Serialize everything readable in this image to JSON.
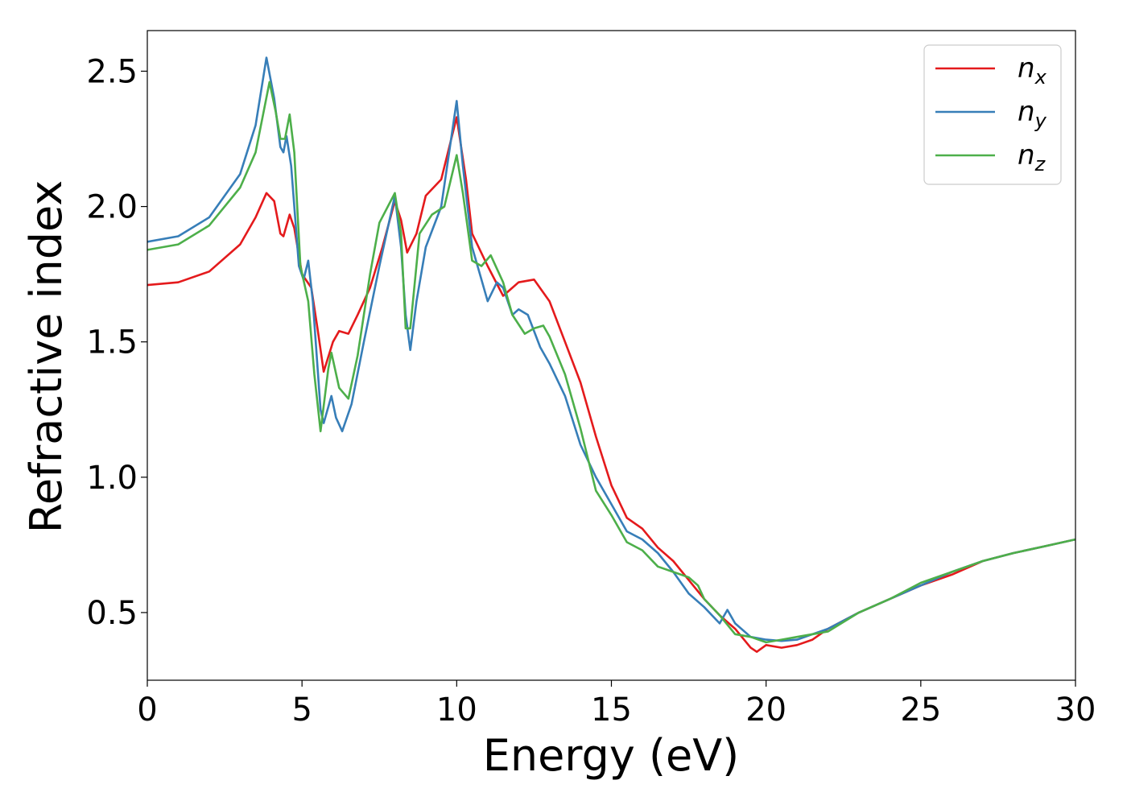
{
  "chart_data": {
    "type": "line",
    "xlabel": "Energy (eV)",
    "ylabel": "Refractive index",
    "xlim": [
      0,
      30
    ],
    "ylim": [
      0.25,
      2.65
    ],
    "xticks": [
      0,
      5,
      10,
      15,
      20,
      25,
      30
    ],
    "xtick_labels": [
      "0",
      "5",
      "10",
      "15",
      "20",
      "25",
      "30"
    ],
    "yticks": [
      0.5,
      1.0,
      1.5,
      2.0,
      2.5
    ],
    "ytick_labels": [
      "0.5",
      "1.0",
      "1.5",
      "2.0",
      "2.5"
    ],
    "grid": false,
    "legend_position": "top-right",
    "series": [
      {
        "name": "n_x",
        "label_main": "n",
        "label_sub": "x",
        "color": "#e41a1c",
        "points": [
          [
            0,
            1.71
          ],
          [
            1,
            1.72
          ],
          [
            2,
            1.76
          ],
          [
            3,
            1.86
          ],
          [
            3.5,
            1.96
          ],
          [
            3.85,
            2.05
          ],
          [
            4.1,
            2.02
          ],
          [
            4.3,
            1.9
          ],
          [
            4.4,
            1.89
          ],
          [
            4.6,
            1.97
          ],
          [
            4.75,
            1.92
          ],
          [
            5.0,
            1.75
          ],
          [
            5.3,
            1.7
          ],
          [
            5.5,
            1.55
          ],
          [
            5.7,
            1.39
          ],
          [
            6.0,
            1.5
          ],
          [
            6.2,
            1.54
          ],
          [
            6.5,
            1.53
          ],
          [
            6.8,
            1.6
          ],
          [
            7.2,
            1.7
          ],
          [
            7.6,
            1.85
          ],
          [
            8.0,
            2.02
          ],
          [
            8.2,
            1.95
          ],
          [
            8.4,
            1.83
          ],
          [
            8.7,
            1.9
          ],
          [
            9.0,
            2.04
          ],
          [
            9.5,
            2.1
          ],
          [
            10.0,
            2.33
          ],
          [
            10.3,
            2.1
          ],
          [
            10.5,
            1.9
          ],
          [
            11.0,
            1.78
          ],
          [
            11.5,
            1.67
          ],
          [
            12.0,
            1.72
          ],
          [
            12.5,
            1.73
          ],
          [
            13.0,
            1.65
          ],
          [
            13.5,
            1.5
          ],
          [
            14.0,
            1.35
          ],
          [
            14.5,
            1.15
          ],
          [
            15.0,
            0.97
          ],
          [
            15.5,
            0.85
          ],
          [
            16.0,
            0.81
          ],
          [
            16.5,
            0.74
          ],
          [
            17.0,
            0.69
          ],
          [
            17.5,
            0.62
          ],
          [
            18.0,
            0.55
          ],
          [
            18.5,
            0.49
          ],
          [
            19.0,
            0.44
          ],
          [
            19.5,
            0.37
          ],
          [
            19.7,
            0.355
          ],
          [
            20.0,
            0.38
          ],
          [
            20.5,
            0.37
          ],
          [
            21.0,
            0.38
          ],
          [
            21.5,
            0.4
          ],
          [
            22,
            0.44
          ],
          [
            23,
            0.5
          ],
          [
            24,
            0.55
          ],
          [
            25,
            0.6
          ],
          [
            26,
            0.64
          ],
          [
            27,
            0.69
          ],
          [
            28,
            0.72
          ],
          [
            29,
            0.745
          ],
          [
            30,
            0.77
          ]
        ]
      },
      {
        "name": "n_y",
        "label_main": "n",
        "label_sub": "y",
        "color": "#377eb8",
        "points": [
          [
            0,
            1.87
          ],
          [
            1,
            1.89
          ],
          [
            2,
            1.96
          ],
          [
            3,
            2.12
          ],
          [
            3.5,
            2.3
          ],
          [
            3.85,
            2.55
          ],
          [
            4.1,
            2.4
          ],
          [
            4.3,
            2.22
          ],
          [
            4.4,
            2.2
          ],
          [
            4.5,
            2.26
          ],
          [
            4.65,
            2.15
          ],
          [
            4.9,
            1.78
          ],
          [
            5.05,
            1.73
          ],
          [
            5.2,
            1.8
          ],
          [
            5.35,
            1.65
          ],
          [
            5.6,
            1.25
          ],
          [
            5.7,
            1.2
          ],
          [
            5.95,
            1.3
          ],
          [
            6.1,
            1.22
          ],
          [
            6.3,
            1.17
          ],
          [
            6.6,
            1.27
          ],
          [
            7.0,
            1.5
          ],
          [
            7.5,
            1.78
          ],
          [
            8.0,
            2.04
          ],
          [
            8.2,
            1.85
          ],
          [
            8.35,
            1.6
          ],
          [
            8.5,
            1.47
          ],
          [
            8.7,
            1.65
          ],
          [
            9.0,
            1.85
          ],
          [
            9.5,
            2.0
          ],
          [
            10.0,
            2.39
          ],
          [
            10.2,
            2.15
          ],
          [
            10.5,
            1.85
          ],
          [
            11.0,
            1.65
          ],
          [
            11.3,
            1.72
          ],
          [
            11.5,
            1.7
          ],
          [
            11.8,
            1.6
          ],
          [
            12.0,
            1.62
          ],
          [
            12.3,
            1.6
          ],
          [
            12.7,
            1.48
          ],
          [
            13.0,
            1.42
          ],
          [
            13.5,
            1.3
          ],
          [
            14.0,
            1.12
          ],
          [
            14.5,
            1.0
          ],
          [
            15.0,
            0.9
          ],
          [
            15.5,
            0.8
          ],
          [
            16.0,
            0.77
          ],
          [
            16.5,
            0.72
          ],
          [
            17.0,
            0.65
          ],
          [
            17.5,
            0.57
          ],
          [
            18.0,
            0.52
          ],
          [
            18.5,
            0.46
          ],
          [
            18.75,
            0.51
          ],
          [
            19.0,
            0.46
          ],
          [
            19.5,
            0.41
          ],
          [
            20.0,
            0.4
          ],
          [
            20.5,
            0.395
          ],
          [
            21,
            0.4
          ],
          [
            22,
            0.44
          ],
          [
            23,
            0.5
          ],
          [
            24,
            0.55
          ],
          [
            25,
            0.6
          ],
          [
            26,
            0.65
          ],
          [
            27,
            0.69
          ],
          [
            28,
            0.72
          ],
          [
            29,
            0.745
          ],
          [
            30,
            0.77
          ]
        ]
      },
      {
        "name": "n_z",
        "label_main": "n",
        "label_sub": "z",
        "color": "#4daf4a",
        "points": [
          [
            0,
            1.84
          ],
          [
            1,
            1.86
          ],
          [
            2,
            1.93
          ],
          [
            3,
            2.07
          ],
          [
            3.5,
            2.2
          ],
          [
            3.95,
            2.46
          ],
          [
            4.15,
            2.35
          ],
          [
            4.3,
            2.25
          ],
          [
            4.45,
            2.25
          ],
          [
            4.6,
            2.34
          ],
          [
            4.75,
            2.2
          ],
          [
            4.95,
            1.78
          ],
          [
            5.2,
            1.65
          ],
          [
            5.4,
            1.38
          ],
          [
            5.6,
            1.17
          ],
          [
            5.85,
            1.4
          ],
          [
            5.95,
            1.46
          ],
          [
            6.2,
            1.33
          ],
          [
            6.5,
            1.29
          ],
          [
            6.8,
            1.45
          ],
          [
            7.2,
            1.75
          ],
          [
            7.5,
            1.94
          ],
          [
            8.0,
            2.05
          ],
          [
            8.2,
            1.9
          ],
          [
            8.35,
            1.55
          ],
          [
            8.5,
            1.55
          ],
          [
            8.8,
            1.9
          ],
          [
            9.2,
            1.97
          ],
          [
            9.6,
            2.0
          ],
          [
            10.0,
            2.19
          ],
          [
            10.2,
            2.05
          ],
          [
            10.5,
            1.8
          ],
          [
            10.8,
            1.78
          ],
          [
            11.1,
            1.82
          ],
          [
            11.5,
            1.72
          ],
          [
            11.8,
            1.6
          ],
          [
            12.2,
            1.53
          ],
          [
            12.5,
            1.55
          ],
          [
            12.8,
            1.56
          ],
          [
            13.0,
            1.52
          ],
          [
            13.5,
            1.38
          ],
          [
            14.0,
            1.18
          ],
          [
            14.5,
            0.95
          ],
          [
            15.0,
            0.86
          ],
          [
            15.5,
            0.76
          ],
          [
            16.0,
            0.73
          ],
          [
            16.5,
            0.67
          ],
          [
            17.0,
            0.65
          ],
          [
            17.5,
            0.63
          ],
          [
            17.8,
            0.6
          ],
          [
            18.0,
            0.55
          ],
          [
            18.5,
            0.49
          ],
          [
            19.0,
            0.42
          ],
          [
            19.5,
            0.41
          ],
          [
            20.0,
            0.39
          ],
          [
            20.5,
            0.4
          ],
          [
            21,
            0.41
          ],
          [
            22,
            0.43
          ],
          [
            23,
            0.5
          ],
          [
            24,
            0.55
          ],
          [
            25,
            0.61
          ],
          [
            26,
            0.65
          ],
          [
            27,
            0.69
          ],
          [
            28,
            0.72
          ],
          [
            29,
            0.745
          ],
          [
            30,
            0.77
          ]
        ]
      }
    ]
  }
}
